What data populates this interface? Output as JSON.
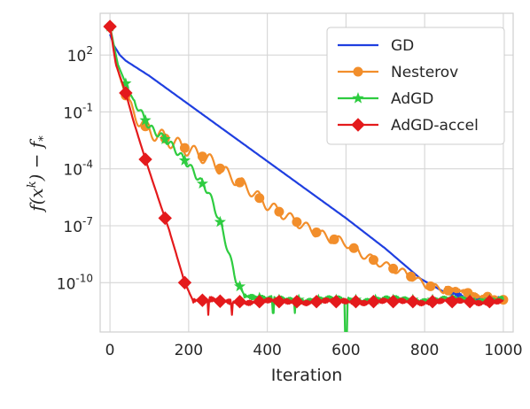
{
  "chart_data": {
    "type": "line",
    "xlabel": "Iteration",
    "ylabel": "f(x^k) − f_*",
    "yscale": "log",
    "xlim": [
      -25,
      1025
    ],
    "ylim_log10": [
      -12.6,
      4.2
    ],
    "x_ticks": [
      0,
      200,
      400,
      600,
      800,
      1000
    ],
    "x_tick_labels": [
      "0",
      "200",
      "400",
      "600",
      "800",
      "1000"
    ],
    "y_ticks_log10": [
      2,
      -1,
      -4,
      -7,
      -10
    ],
    "y_tick_labels": [
      {
        "base": "10",
        "exp": "2"
      },
      {
        "base": "10",
        "exp": "-1"
      },
      {
        "base": "10",
        "exp": "-4"
      },
      {
        "base": "10",
        "exp": "-7"
      },
      {
        "base": "10",
        "exp": "-10"
      }
    ],
    "grid": true,
    "legend_position": "top-right",
    "series": [
      {
        "name": "GD",
        "color": "#1f3fe0",
        "marker": "none",
        "log10_points": [
          [
            0,
            3.1
          ],
          [
            10,
            2.5
          ],
          [
            25,
            2.0
          ],
          [
            40,
            1.7
          ],
          [
            100,
            0.9
          ],
          [
            200,
            -0.6
          ],
          [
            300,
            -2.1
          ],
          [
            400,
            -3.6
          ],
          [
            500,
            -5.1
          ],
          [
            600,
            -6.6
          ],
          [
            700,
            -8.2
          ],
          [
            790,
            -9.8
          ],
          [
            850,
            -10.5
          ],
          [
            900,
            -10.8
          ],
          [
            1000,
            -10.9
          ]
        ]
      },
      {
        "name": "Nesterov",
        "color": "#f28e2b",
        "marker": "circle",
        "log10_points": [
          [
            0,
            3.5
          ],
          [
            20,
            1.2
          ],
          [
            50,
            -0.8
          ],
          [
            100,
            -2.0
          ],
          [
            200,
            -3.0
          ],
          [
            250,
            -3.5
          ],
          [
            300,
            -4.3
          ],
          [
            350,
            -5.0
          ],
          [
            400,
            -5.9
          ],
          [
            450,
            -6.5
          ],
          [
            500,
            -7.1
          ],
          [
            550,
            -7.6
          ],
          [
            600,
            -7.9
          ],
          [
            650,
            -8.6
          ],
          [
            700,
            -9.1
          ],
          [
            750,
            -9.5
          ],
          [
            800,
            -10.1
          ],
          [
            850,
            -10.4
          ],
          [
            900,
            -10.5
          ],
          [
            1000,
            -10.9
          ]
        ]
      },
      {
        "name": "AdGD",
        "color": "#2ecc40",
        "marker": "star",
        "log10_points": [
          [
            0,
            3.5
          ],
          [
            20,
            1.5
          ],
          [
            50,
            0.0
          ],
          [
            100,
            -1.8
          ],
          [
            150,
            -2.6
          ],
          [
            200,
            -3.8
          ],
          [
            250,
            -5.2
          ],
          [
            280,
            -6.8
          ],
          [
            300,
            -8.3
          ],
          [
            320,
            -9.8
          ],
          [
            340,
            -10.6
          ],
          [
            400,
            -10.9
          ],
          [
            500,
            -10.9
          ],
          [
            600,
            -10.9
          ],
          [
            700,
            -10.9
          ],
          [
            1000,
            -10.9
          ]
        ]
      },
      {
        "name": "AdGD-accel",
        "color": "#e41a1c",
        "marker": "diamond",
        "log10_points": [
          [
            0,
            3.5
          ],
          [
            15,
            1.5
          ],
          [
            40,
            0.0
          ],
          [
            60,
            -1.5
          ],
          [
            90,
            -3.5
          ],
          [
            130,
            -6.0
          ],
          [
            150,
            -7.2
          ],
          [
            170,
            -8.6
          ],
          [
            190,
            -10.0
          ],
          [
            210,
            -10.9
          ],
          [
            300,
            -11.0
          ],
          [
            400,
            -11.0
          ],
          [
            500,
            -11.0
          ],
          [
            600,
            -11.0
          ],
          [
            700,
            -11.0
          ],
          [
            800,
            -11.0
          ],
          [
            900,
            -11.0
          ],
          [
            1000,
            -11.0
          ]
        ]
      }
    ]
  }
}
